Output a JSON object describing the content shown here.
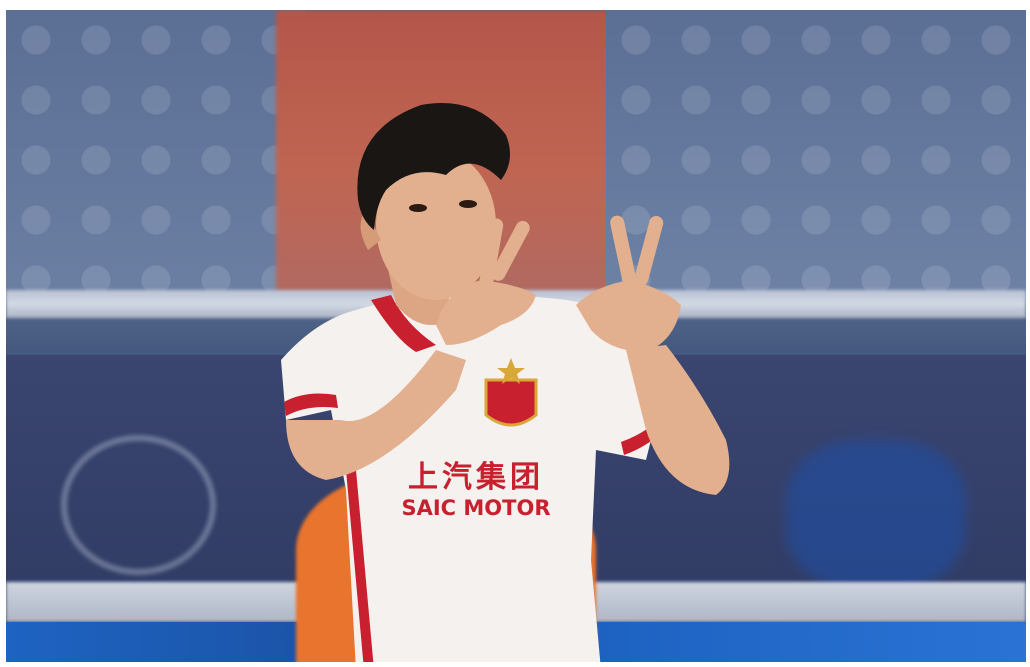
{
  "jersey_sponsor": {
    "chinese": "上汽集团",
    "english": "SAIC MOTOR"
  },
  "colors": {
    "jersey": "#f4f1ee",
    "jersey_trim": "#c8202e",
    "sponsor_text": "#c8202e",
    "goalkeeper_kit": "#e8742e",
    "stadium_seats": "#5b6f95",
    "ad_board": "#323d66",
    "hair": "#1a1614",
    "skin": "#e2b08e"
  },
  "icons": [
    "club-crest-icon",
    "stadium-emblem-icon"
  ]
}
